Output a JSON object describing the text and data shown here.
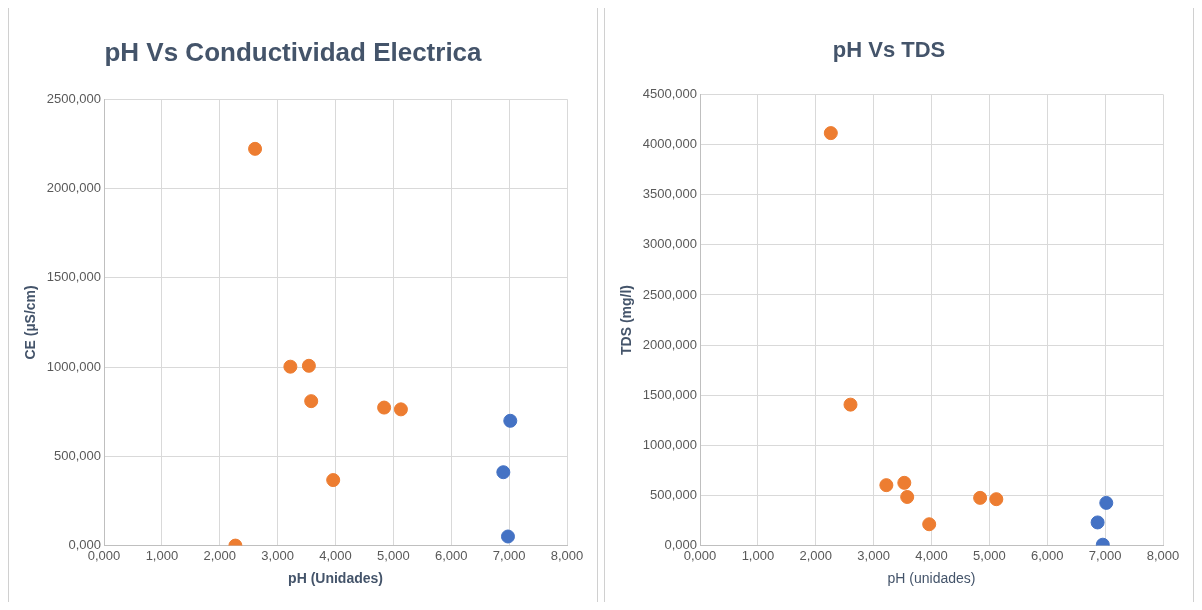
{
  "chart_data": [
    {
      "type": "scatter",
      "title": "pH Vs Conductividad Electrica",
      "xlabel": "pH (Unidades)",
      "ylabel": "CE (µS/cm)",
      "series": [
        {
          "color": "#ed7d31",
          "x": [
            2.61,
            2.27,
            3.22,
            3.54,
            3.58,
            3.96,
            4.84,
            5.13
          ],
          "values": [
            2222,
            0,
            1002,
            1007,
            809,
            367,
            773,
            763
          ]
        },
        {
          "color": "#4472c4",
          "x": [
            7.02,
            6.9,
            6.98
          ],
          "values": [
            699,
            411,
            51
          ]
        }
      ],
      "xlim": [
        0,
        8
      ],
      "xticks": [
        {
          "value": 0,
          "label": "0,000"
        },
        {
          "value": 1,
          "label": "1,000"
        },
        {
          "value": 2,
          "label": "2,000"
        },
        {
          "value": 3,
          "label": "3,000"
        },
        {
          "value": 4,
          "label": "4,000"
        },
        {
          "value": 5,
          "label": "5,000"
        },
        {
          "value": 6,
          "label": "6,000"
        },
        {
          "value": 7,
          "label": "7,000"
        },
        {
          "value": 8,
          "label": "8,000"
        }
      ],
      "ylim": [
        0,
        2500
      ],
      "yticks": [
        {
          "value": 0,
          "label": "0,000"
        },
        {
          "value": 500,
          "label": "500,000"
        },
        {
          "value": 1000,
          "label": "1000,000"
        },
        {
          "value": 1500,
          "label": "1500,000"
        },
        {
          "value": 2000,
          "label": "2000,000"
        },
        {
          "value": 2500,
          "label": "2500,000"
        }
      ],
      "grid": true,
      "legend": false,
      "marker": "circle"
    },
    {
      "type": "scatter",
      "title": "pH Vs TDS",
      "xlabel": "pH (unidades)",
      "ylabel": "TDS (mg/l)",
      "series": [
        {
          "color": "#ed7d31",
          "x": [
            2.26,
            2.6,
            3.22,
            3.53,
            3.58,
            3.96,
            4.84,
            5.12
          ],
          "values": [
            4114,
            1406,
            603,
            626,
            485,
            213,
            476,
            463
          ]
        },
        {
          "color": "#4472c4",
          "x": [
            7.02,
            6.87,
            6.96
          ],
          "values": [
            426,
            231,
            9
          ]
        }
      ],
      "xlim": [
        0,
        8
      ],
      "xticks": [
        {
          "value": 0,
          "label": "0,000"
        },
        {
          "value": 1,
          "label": "1,000"
        },
        {
          "value": 2,
          "label": "2,000"
        },
        {
          "value": 3,
          "label": "3,000"
        },
        {
          "value": 4,
          "label": "4,000"
        },
        {
          "value": 5,
          "label": "5,000"
        },
        {
          "value": 6,
          "label": "6,000"
        },
        {
          "value": 7,
          "label": "7,000"
        },
        {
          "value": 8,
          "label": "8,000"
        }
      ],
      "ylim": [
        0,
        4500
      ],
      "yticks": [
        {
          "value": 0,
          "label": "0,000"
        },
        {
          "value": 500,
          "label": "500,000"
        },
        {
          "value": 1000,
          "label": "1000,000"
        },
        {
          "value": 1500,
          "label": "1500,000"
        },
        {
          "value": 2000,
          "label": "2000,000"
        },
        {
          "value": 2500,
          "label": "2500,000"
        },
        {
          "value": 3000,
          "label": "3000,000"
        },
        {
          "value": 3500,
          "label": "3500,000"
        },
        {
          "value": 4000,
          "label": "4000,000"
        },
        {
          "value": 4500,
          "label": "4500,000"
        }
      ],
      "grid": true,
      "legend": false,
      "marker": "circle"
    }
  ]
}
